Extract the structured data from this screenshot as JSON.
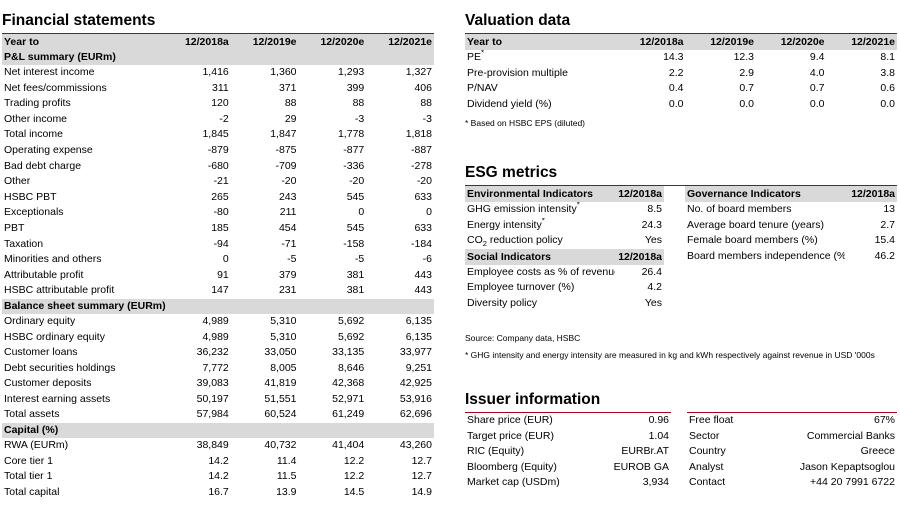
{
  "financial": {
    "title": "Financial statements",
    "header": [
      "Year to",
      "12/2018a",
      "12/2019e",
      "12/2020e",
      "12/2021e"
    ],
    "sections": [
      {
        "title": "P&L summary (EURm)",
        "rows": [
          {
            "label": "Net interest income",
            "values": [
              "1,416",
              "1,360",
              "1,293",
              "1,327"
            ]
          },
          {
            "label": "Net fees/commissions",
            "values": [
              "311",
              "371",
              "399",
              "406"
            ]
          },
          {
            "label": "Trading profits",
            "values": [
              "120",
              "88",
              "88",
              "88"
            ]
          },
          {
            "label": "Other income",
            "values": [
              "-2",
              "29",
              "-3",
              "-3"
            ]
          },
          {
            "label": "Total income",
            "values": [
              "1,845",
              "1,847",
              "1,778",
              "1,818"
            ]
          },
          {
            "label": "Operating expense",
            "values": [
              "-879",
              "-875",
              "-877",
              "-887"
            ]
          },
          {
            "label": "Bad debt charge",
            "values": [
              "-680",
              "-709",
              "-336",
              "-278"
            ]
          },
          {
            "label": "Other",
            "values": [
              "-21",
              "-20",
              "-20",
              "-20"
            ]
          },
          {
            "label": "HSBC PBT",
            "values": [
              "265",
              "243",
              "545",
              "633"
            ]
          },
          {
            "label": "Exceptionals",
            "values": [
              "-80",
              "211",
              "0",
              "0"
            ]
          },
          {
            "label": "PBT",
            "values": [
              "185",
              "454",
              "545",
              "633"
            ]
          },
          {
            "label": "Taxation",
            "values": [
              "-94",
              "-71",
              "-158",
              "-184"
            ]
          },
          {
            "label": "Minorities and others",
            "values": [
              "0",
              "-5",
              "-5",
              "-6"
            ]
          },
          {
            "label": "Attributable profit",
            "values": [
              "91",
              "379",
              "381",
              "443"
            ]
          },
          {
            "label": "HSBC attributable profit",
            "values": [
              "147",
              "231",
              "381",
              "443"
            ]
          }
        ]
      },
      {
        "title": "Balance sheet summary (EURm)",
        "rows": [
          {
            "label": "Ordinary equity",
            "values": [
              "4,989",
              "5,310",
              "5,692",
              "6,135"
            ]
          },
          {
            "label": "HSBC ordinary equity",
            "values": [
              "4,989",
              "5,310",
              "5,692",
              "6,135"
            ]
          },
          {
            "label": "Customer loans",
            "values": [
              "36,232",
              "33,050",
              "33,135",
              "33,977"
            ]
          },
          {
            "label": "Debt securities holdings",
            "values": [
              "7,772",
              "8,005",
              "8,646",
              "9,251"
            ]
          },
          {
            "label": "Customer deposits",
            "values": [
              "39,083",
              "41,819",
              "42,368",
              "42,925"
            ]
          },
          {
            "label": "Interest earning assets",
            "values": [
              "50,197",
              "51,551",
              "52,971",
              "53,916"
            ]
          },
          {
            "label": "Total assets",
            "values": [
              "57,984",
              "60,524",
              "61,249",
              "62,696"
            ]
          }
        ]
      },
      {
        "title": "Capital (%)",
        "rows": [
          {
            "label": "RWA   (EURm)",
            "values": [
              "38,849",
              "40,732",
              "41,404",
              "43,260"
            ]
          },
          {
            "label": "Core tier 1",
            "values": [
              "14.2",
              "11.4",
              "12.2",
              "12.7"
            ]
          },
          {
            "label": "Total tier 1",
            "values": [
              "14.2",
              "11.5",
              "12.2",
              "12.7"
            ]
          },
          {
            "label": "Total capital",
            "values": [
              "16.7",
              "13.9",
              "14.5",
              "14.9"
            ]
          }
        ]
      }
    ]
  },
  "valuation": {
    "title": "Valuation data",
    "header": [
      "Year to",
      "12/2018a",
      "12/2019e",
      "12/2020e",
      "12/2021e"
    ],
    "rows": [
      {
        "label": "PE",
        "mark": "*",
        "values": [
          "14.3",
          "12.3",
          "9.4",
          "8.1"
        ]
      },
      {
        "label": "Pre-provision multiple",
        "mark": "",
        "values": [
          "2.2",
          "2.9",
          "4.0",
          "3.8"
        ]
      },
      {
        "label": "P/NAV",
        "mark": "",
        "values": [
          "0.4",
          "0.7",
          "0.7",
          "0.6"
        ]
      },
      {
        "label": "Dividend yield (%)",
        "mark": "",
        "values": [
          "0.0",
          "0.0",
          "0.0",
          "0.0"
        ]
      }
    ],
    "note": "* Based on HSBC EPS (diluted)"
  },
  "esg": {
    "title": "ESG metrics",
    "environmental": {
      "header": "Environmental Indicators",
      "year": "12/2018a",
      "rows": [
        {
          "label": "GHG emission intensity",
          "mark": "*",
          "value": "8.5"
        },
        {
          "label": "Energy intensity",
          "mark": "*",
          "value": "24.3"
        },
        {
          "label_pre": "CO",
          "label_sub": "2",
          "label_post": " reduction policy",
          "value": "Yes"
        }
      ]
    },
    "social": {
      "header": "Social Indicators",
      "year": "12/2018a",
      "rows": [
        {
          "label": "Employee costs as % of revenues",
          "value": "26.4"
        },
        {
          "label": "Employee turnover (%)",
          "value": "4.2"
        },
        {
          "label": "Diversity policy",
          "value": "Yes"
        }
      ]
    },
    "governance": {
      "header": "Governance Indicators",
      "year": "12/2018a",
      "rows": [
        {
          "label": "No. of board members",
          "value": "13"
        },
        {
          "label": "Average board tenure (years)",
          "value": "2.7"
        },
        {
          "label": "Female board members (%)",
          "value": "15.4"
        },
        {
          "label": "Board members independence (%)",
          "value": "46.2"
        }
      ]
    },
    "source": "Source: Company data, HSBC",
    "note": "* GHG intensity and energy intensity are measured in kg and kWh respectively against revenue in USD '000s"
  },
  "issuer": {
    "title": "Issuer information",
    "left": [
      {
        "label": "Share price (EUR)",
        "value": "0.96"
      },
      {
        "label": "Target price (EUR)",
        "value": "1.04"
      },
      {
        "label": "RIC (Equity)",
        "value": "EURBr.AT"
      },
      {
        "label": "Bloomberg (Equity)",
        "value": "EUROB GA"
      },
      {
        "label": "Market cap (USDm)",
        "value": "3,934"
      }
    ],
    "right": [
      {
        "label": "Free float",
        "value": "67%"
      },
      {
        "label": "Sector",
        "value": "Commercial Banks"
      },
      {
        "label": "Country",
        "value": "Greece"
      },
      {
        "label": "Analyst",
        "value": "Jason Kepaptsoglou"
      },
      {
        "label": "Contact",
        "value": "+44 20 7991 6722"
      }
    ]
  }
}
